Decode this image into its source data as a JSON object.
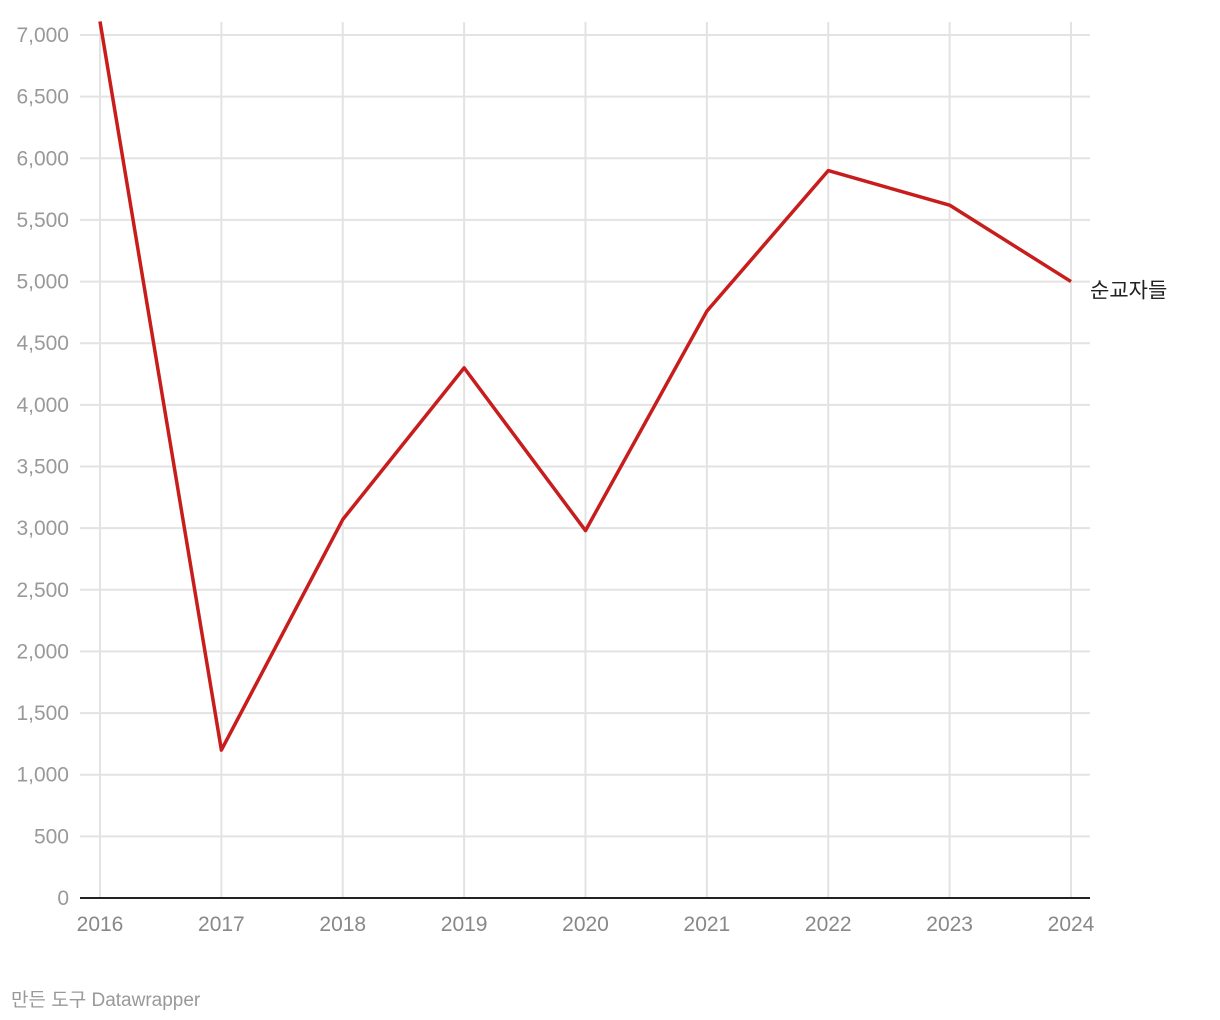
{
  "chart_data": {
    "type": "line",
    "title": "",
    "xlabel": "",
    "ylabel": "",
    "x": [
      "2016",
      "2017",
      "2018",
      "2019",
      "2020",
      "2021",
      "2022",
      "2023",
      "2024"
    ],
    "series": [
      {
        "name": "순교자들",
        "color": "#c71e1d",
        "values": [
          7110,
          1200,
          3070,
          4300,
          2980,
          4760,
          5900,
          5620,
          5000
        ]
      }
    ],
    "ylim": [
      0,
      7000
    ],
    "yticks": [
      0,
      500,
      1000,
      1500,
      2000,
      2500,
      3000,
      3500,
      4000,
      4500,
      5000,
      5500,
      6000,
      6500,
      7000
    ],
    "ytick_labels": [
      "0",
      "500",
      "1,000",
      "1,500",
      "2,000",
      "2,500",
      "3,000",
      "3,500",
      "4,000",
      "4,500",
      "5,000",
      "5,500",
      "6,000",
      "6,500",
      "7,000"
    ],
    "grid": true,
    "legend": "inline-label-right"
  },
  "footer": {
    "credit": "만든 도구 Datawrapper"
  }
}
